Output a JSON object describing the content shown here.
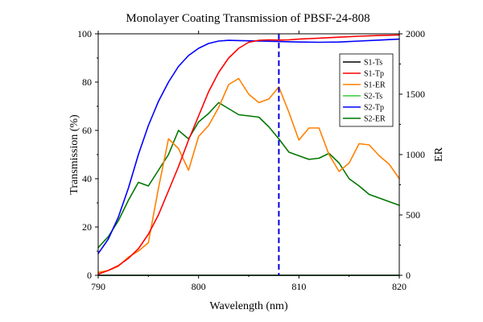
{
  "chart_data": {
    "type": "line",
    "title": "Monolayer Coating Transmission of PBSF-24-808",
    "xlabel": "Wavelength (nm)",
    "ylabel": "Transmission (%)",
    "y2label": "ER",
    "xlim": [
      790,
      820
    ],
    "ylim": [
      0,
      100
    ],
    "y2lim": [
      0,
      2000
    ],
    "x_ticks": [
      "790",
      "800",
      "810",
      "820"
    ],
    "y_ticks": [
      "0",
      "20",
      "40",
      "60",
      "80",
      "100"
    ],
    "y2_ticks": [
      "0",
      "500",
      "1000",
      "1500",
      "2000"
    ],
    "legend_position": "top-right",
    "reference_line": {
      "x": 808,
      "style": "dashed",
      "color": "#0000dd"
    },
    "series": [
      {
        "name": "S1-Ts",
        "axis": "left",
        "color": "#000000",
        "x": [
          790,
          795,
          800,
          805,
          810,
          815,
          820
        ],
        "y": [
          0,
          0,
          0,
          0,
          0,
          0,
          0
        ]
      },
      {
        "name": "S1-Tp",
        "axis": "left",
        "color": "#ff0000",
        "x": [
          790,
          791,
          792,
          793,
          794,
          795,
          796,
          797,
          798,
          799,
          800,
          801,
          802,
          803,
          804,
          805,
          806,
          807,
          808,
          809,
          810,
          812,
          814,
          816,
          818,
          820
        ],
        "y": [
          0.5,
          2,
          4,
          7,
          11,
          17,
          25,
          35,
          45,
          56,
          66,
          76,
          84,
          90,
          94,
          96.5,
          97.3,
          97.5,
          97.4,
          97.5,
          97.8,
          98.2,
          98.6,
          99,
          99.3,
          99.5
        ]
      },
      {
        "name": "S1-ER",
        "axis": "right",
        "color": "#ff8000",
        "x": [
          790,
          791,
          792,
          793,
          794,
          795,
          796,
          797,
          798,
          799,
          800,
          801,
          802,
          803,
          804,
          805,
          806,
          807,
          808,
          809,
          810,
          811,
          812,
          813,
          814,
          815,
          816,
          817,
          818,
          819,
          820
        ],
        "y": [
          25,
          40,
          75,
          150,
          200,
          270,
          720,
          1130,
          1050,
          870,
          1150,
          1240,
          1390,
          1580,
          1630,
          1500,
          1430,
          1460,
          1560,
          1350,
          1120,
          1220,
          1220,
          1000,
          860,
          930,
          1090,
          1080,
          990,
          920,
          800
        ]
      },
      {
        "name": "S2-Ts",
        "axis": "left",
        "color": "#33cc33",
        "x": [
          790,
          795,
          800,
          805,
          810,
          815,
          820
        ],
        "y": [
          0,
          0,
          0,
          0,
          0,
          0,
          0
        ]
      },
      {
        "name": "S2-Tp",
        "axis": "left",
        "color": "#0000ff",
        "x": [
          790,
          791,
          792,
          793,
          794,
          795,
          796,
          797,
          798,
          799,
          800,
          801,
          802,
          803,
          804,
          805,
          806,
          808,
          810,
          812,
          814,
          816,
          818,
          820
        ],
        "y": [
          9,
          15,
          24,
          36,
          50,
          62,
          72,
          80,
          86.5,
          91,
          94,
          96,
          97,
          97.3,
          97.2,
          97.1,
          97,
          96.8,
          96.6,
          96.5,
          96.6,
          97,
          97.4,
          97.8
        ]
      },
      {
        "name": "S2-ER",
        "axis": "right",
        "color": "#007700",
        "x": [
          790,
          791,
          792,
          793,
          794,
          795,
          796,
          797,
          798,
          799,
          800,
          801,
          802,
          803,
          804,
          805,
          806,
          807,
          808,
          809,
          810,
          811,
          812,
          813,
          814,
          815,
          816,
          817,
          818,
          819,
          820
        ],
        "y": [
          230,
          320,
          450,
          620,
          770,
          740,
          870,
          1000,
          1200,
          1130,
          1270,
          1340,
          1430,
          1380,
          1330,
          1320,
          1310,
          1230,
          1130,
          1020,
          990,
          960,
          970,
          1010,
          930,
          800,
          740,
          670,
          640,
          610,
          580
        ]
      }
    ]
  }
}
